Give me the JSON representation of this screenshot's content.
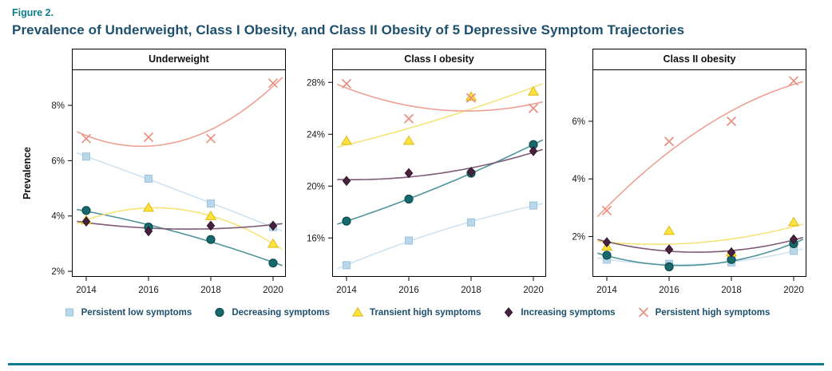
{
  "figure": {
    "label": "Figure 2.",
    "title": "Prevalence of Underweight, Class I Obesity, and Class II Obesity of 5 Depressive Symptom Trajectories"
  },
  "colors": {
    "theme": {
      "accent": "#0e7c8b",
      "title": "#1d4f6e",
      "text": "#1a1a1a",
      "axis": "#000000"
    },
    "series": {
      "persistent_low": {
        "fill": "#b9d7ea",
        "stroke": "#9cc3dd",
        "line": "#cfe3f1"
      },
      "decreasing": {
        "fill": "#17696d",
        "stroke": "#0d4b4e",
        "line": "#4f949b"
      },
      "transient_high": {
        "fill": "#ffe23e",
        "stroke": "#dcba12",
        "line": "#f5e479"
      },
      "increasing": {
        "fill": "#46223f",
        "stroke": "#2f142a",
        "line": "#7d5a76"
      },
      "persistent_high": {
        "fill": "#e88f7f",
        "stroke": "#e88f7f",
        "line": "#eda193"
      }
    }
  },
  "legend": [
    {
      "id": "persistent_low",
      "marker": "square",
      "label": "Persistent low symptoms"
    },
    {
      "id": "decreasing",
      "marker": "circle",
      "label": "Decreasing symptoms"
    },
    {
      "id": "transient_high",
      "marker": "triangle",
      "label": "Transient high symptoms"
    },
    {
      "id": "increasing",
      "marker": "diamond",
      "label": "Increasing symptoms"
    },
    {
      "id": "persistent_high",
      "marker": "x",
      "label": "Persistent high symptoms"
    }
  ],
  "chart_data": [
    {
      "type": "scatter",
      "title": "Underweight",
      "ylabel": "Prevalence",
      "x": [
        2014,
        2016,
        2018,
        2020
      ],
      "xtick_labels": [
        "2014",
        "2016",
        "2018",
        "2020"
      ],
      "ylim": [
        1.8,
        9.3
      ],
      "yticks": [
        2,
        4,
        6,
        8
      ],
      "ytick_labels": [
        "2%",
        "4%",
        "6%",
        "8%"
      ],
      "trend": "quadratic",
      "grid": false,
      "series": [
        {
          "id": "persistent_low",
          "name": "Persistent low symptoms",
          "marker": "square",
          "values": [
            6.15,
            5.35,
            4.45,
            3.6
          ]
        },
        {
          "id": "decreasing",
          "name": "Decreasing symptoms",
          "marker": "circle",
          "values": [
            4.2,
            3.6,
            3.15,
            2.3
          ]
        },
        {
          "id": "transient_high",
          "name": "Transient high symptoms",
          "marker": "triangle",
          "values": [
            3.85,
            4.3,
            4.0,
            3.0
          ]
        },
        {
          "id": "increasing",
          "name": "Increasing symptoms",
          "marker": "diamond",
          "values": [
            3.8,
            3.45,
            3.65,
            3.65
          ]
        },
        {
          "id": "persistent_high",
          "name": "Persistent high symptoms",
          "marker": "x",
          "values": [
            6.8,
            6.85,
            6.8,
            8.8
          ]
        }
      ]
    },
    {
      "type": "scatter",
      "title": "Class I obesity",
      "ylabel": "",
      "x": [
        2014,
        2016,
        2018,
        2020
      ],
      "xtick_labels": [
        "2014",
        "2016",
        "2018",
        "2020"
      ],
      "ylim": [
        13,
        29
      ],
      "yticks": [
        16,
        20,
        24,
        28
      ],
      "ytick_labels": [
        "16%",
        "20%",
        "24%",
        "28%"
      ],
      "trend": "quadratic",
      "grid": false,
      "series": [
        {
          "id": "persistent_low",
          "name": "Persistent low symptoms",
          "marker": "square",
          "values": [
            13.9,
            15.8,
            17.2,
            18.5
          ]
        },
        {
          "id": "decreasing",
          "name": "Decreasing symptoms",
          "marker": "circle",
          "values": [
            17.3,
            19.0,
            21.0,
            23.2
          ]
        },
        {
          "id": "transient_high",
          "name": "Transient high symptoms",
          "marker": "triangle",
          "values": [
            23.5,
            23.5,
            26.9,
            27.3
          ]
        },
        {
          "id": "increasing",
          "name": "Increasing symptoms",
          "marker": "diamond",
          "values": [
            20.4,
            21.0,
            21.1,
            22.7
          ]
        },
        {
          "id": "persistent_high",
          "name": "Persistent high symptoms",
          "marker": "x",
          "values": [
            27.9,
            25.2,
            26.8,
            26.0
          ]
        }
      ]
    },
    {
      "type": "scatter",
      "title": "Class II obesity",
      "ylabel": "",
      "x": [
        2014,
        2016,
        2018,
        2020
      ],
      "xtick_labels": [
        "2014",
        "2016",
        "2018",
        "2020"
      ],
      "ylim": [
        0.6,
        7.8
      ],
      "yticks": [
        2,
        4,
        6
      ],
      "ytick_labels": [
        "2%",
        "4%",
        "6%"
      ],
      "trend": "quadratic",
      "grid": false,
      "series": [
        {
          "id": "persistent_low",
          "name": "Persistent low symptoms",
          "marker": "square",
          "values": [
            1.2,
            1.05,
            1.1,
            1.5
          ]
        },
        {
          "id": "decreasing",
          "name": "Decreasing symptoms",
          "marker": "circle",
          "values": [
            1.35,
            0.95,
            1.2,
            1.75
          ]
        },
        {
          "id": "transient_high",
          "name": "Transient high symptoms",
          "marker": "triangle",
          "values": [
            1.65,
            2.2,
            1.45,
            2.5
          ]
        },
        {
          "id": "increasing",
          "name": "Increasing symptoms",
          "marker": "diamond",
          "values": [
            1.8,
            1.55,
            1.45,
            1.9
          ]
        },
        {
          "id": "persistent_high",
          "name": "Persistent high symptoms",
          "marker": "x",
          "values": [
            2.9,
            5.3,
            6.0,
            7.4
          ]
        }
      ]
    }
  ]
}
